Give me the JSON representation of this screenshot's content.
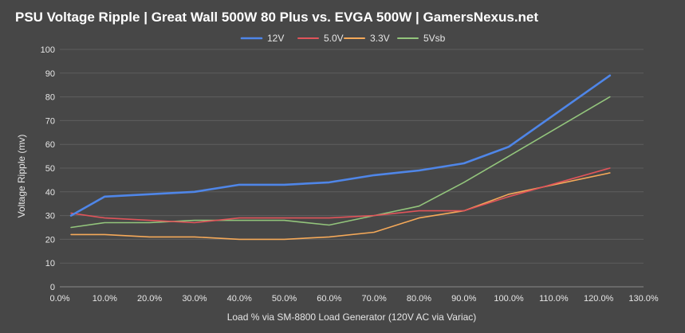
{
  "chart_data": {
    "type": "line",
    "title": "PSU Voltage Ripple | Great Wall 500W 80 Plus vs. EVGA 500W | GamersNexus.net",
    "xlabel": "Load % via SM-8800 Load Generator (120V AC via Variac)",
    "ylabel": "Voltage Ripple (mv)",
    "xlim": [
      0,
      130
    ],
    "ylim": [
      0,
      100
    ],
    "x_ticks": [
      "0.0%",
      "10.0%",
      "20.0%",
      "30.0%",
      "40.0%",
      "50.0%",
      "60.0%",
      "70.0%",
      "80.0%",
      "90.0%",
      "100.0%",
      "110.0%",
      "120.0%",
      "130.0%"
    ],
    "y_ticks": [
      "0",
      "10",
      "20",
      "30",
      "40",
      "50",
      "60",
      "70",
      "80",
      "90",
      "100"
    ],
    "legend_position": "top-center",
    "grid": true,
    "x": [
      2.5,
      10,
      20,
      30,
      40,
      50,
      60,
      70,
      80,
      90,
      100,
      122.5
    ],
    "series": [
      {
        "name": "12V",
        "color": "#4f86e8",
        "values": [
          30,
          38,
          39,
          40,
          43,
          43,
          44,
          47,
          49,
          52,
          59,
          89
        ]
      },
      {
        "name": "5.0V",
        "color": "#e0545a",
        "values": [
          31,
          29,
          28,
          27,
          29,
          29,
          29,
          30,
          32,
          32,
          38,
          50
        ]
      },
      {
        "name": "3.3V",
        "color": "#f5a959",
        "values": [
          22,
          22,
          21,
          21,
          20,
          20,
          21,
          23,
          29,
          32,
          39,
          48
        ]
      },
      {
        "name": "5Vsb",
        "color": "#93c57c",
        "values": [
          25,
          27,
          27,
          28,
          28,
          28,
          26,
          30,
          34,
          44,
          55,
          80
        ]
      }
    ]
  }
}
